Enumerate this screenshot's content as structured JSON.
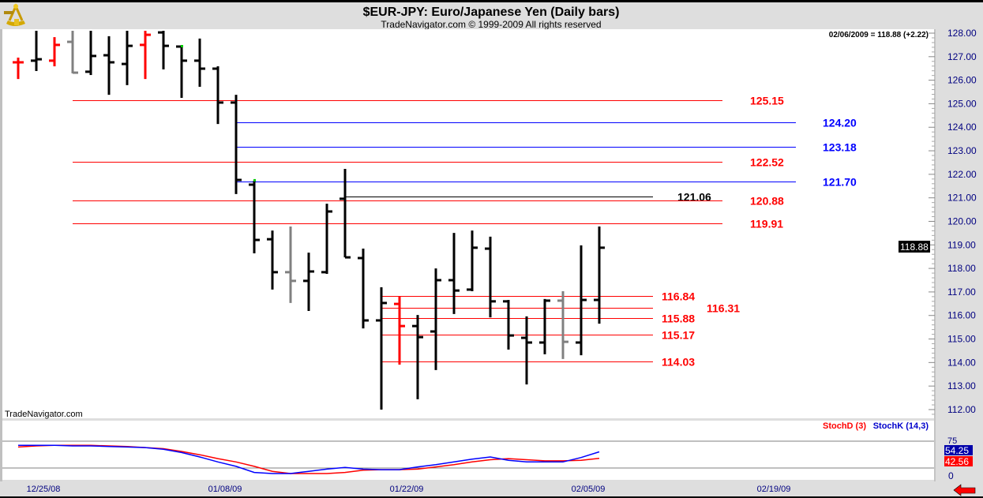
{
  "header": {
    "title": "$EUR-JPY:  Euro/Japanese Yen  (Daily bars)",
    "copyright": "TradeNavigator.com © 1999-2009 All rights reserved",
    "logo_icon": "sextant-icon"
  },
  "price_pane": {
    "last_readout": "02/06/2009 = 118.88 (+2.22)",
    "watermark": "TradeNavigator.com",
    "current_price_tag": "118.88",
    "axis_labels": [
      "128.00",
      "127.00",
      "126.00",
      "125.00",
      "124.00",
      "123.00",
      "122.00",
      "121.00",
      "120.00",
      "119.00",
      "118.00",
      "117.00",
      "116.00",
      "115.00",
      "114.00",
      "113.00",
      "112.00"
    ],
    "colors": {
      "up": "#000000",
      "red": "#ff0000",
      "gray": "#808080",
      "axis_text": "#000080"
    }
  },
  "chart_data": {
    "type": "ohlc",
    "ylim": [
      112,
      128
    ],
    "bars": [
      {
        "o": 126.76,
        "h": 126.96,
        "l": 126.05,
        "c": 126.76,
        "color": "red"
      },
      {
        "o": 126.83,
        "h": 128.1,
        "l": 126.39,
        "c": 126.89,
        "color": "black"
      },
      {
        "o": 126.83,
        "h": 127.83,
        "l": 126.59,
        "c": 127.5,
        "color": "red"
      },
      {
        "o": 127.63,
        "h": 128.1,
        "l": 126.29,
        "c": 126.32,
        "color": "gray"
      },
      {
        "o": 126.36,
        "h": 128.1,
        "l": 126.22,
        "c": 127.03,
        "color": "black"
      },
      {
        "o": 127.06,
        "h": 127.87,
        "l": 125.38,
        "c": 126.76,
        "color": "black"
      },
      {
        "o": 126.69,
        "h": 128.1,
        "l": 125.79,
        "c": 127.46,
        "color": "black"
      },
      {
        "o": 127.5,
        "h": 128.1,
        "l": 126.05,
        "c": 127.93,
        "color": "red"
      },
      {
        "o": 128.03,
        "h": 128.1,
        "l": 126.46,
        "c": 127.46,
        "color": "black"
      },
      {
        "o": 127.43,
        "h": 127.43,
        "l": 125.25,
        "c": 126.83,
        "color": "black"
      },
      {
        "o": 126.83,
        "h": 127.77,
        "l": 125.72,
        "c": 126.49,
        "color": "black"
      },
      {
        "o": 126.49,
        "h": 126.59,
        "l": 124.14,
        "c": 125.05,
        "color": "black"
      },
      {
        "o": 125.05,
        "h": 125.38,
        "l": 121.16,
        "c": 121.76,
        "color": "black"
      },
      {
        "o": 121.56,
        "h": 121.73,
        "l": 118.64,
        "c": 119.21,
        "color": "black"
      },
      {
        "o": 119.24,
        "h": 119.61,
        "l": 117.1,
        "c": 117.84,
        "color": "black"
      },
      {
        "o": 117.84,
        "h": 119.78,
        "l": 116.53,
        "c": 117.47,
        "color": "gray"
      },
      {
        "o": 117.47,
        "h": 118.67,
        "l": 116.19,
        "c": 117.87,
        "color": "black"
      },
      {
        "o": 117.84,
        "h": 120.75,
        "l": 117.77,
        "c": 120.42,
        "color": "black"
      },
      {
        "o": 120.96,
        "h": 122.23,
        "l": 118.47,
        "c": 118.47,
        "color": "black"
      },
      {
        "o": 118.44,
        "h": 118.84,
        "l": 115.45,
        "c": 115.79,
        "color": "black"
      },
      {
        "o": 115.79,
        "h": 117.2,
        "l": 112.0,
        "c": 116.53,
        "color": "black"
      },
      {
        "o": 116.49,
        "h": 116.8,
        "l": 113.91,
        "c": 115.55,
        "color": "red"
      },
      {
        "o": 115.55,
        "h": 116.02,
        "l": 112.44,
        "c": 115.08,
        "color": "black"
      },
      {
        "o": 115.32,
        "h": 118.0,
        "l": 113.68,
        "c": 117.5,
        "color": "black"
      },
      {
        "o": 117.5,
        "h": 119.51,
        "l": 116.06,
        "c": 117.06,
        "color": "black"
      },
      {
        "o": 117.1,
        "h": 119.61,
        "l": 117.03,
        "c": 118.88,
        "color": "black"
      },
      {
        "o": 118.84,
        "h": 119.35,
        "l": 115.92,
        "c": 116.6,
        "color": "black"
      },
      {
        "o": 116.6,
        "h": 116.66,
        "l": 114.55,
        "c": 115.15,
        "color": "black"
      },
      {
        "o": 115.05,
        "h": 115.96,
        "l": 113.07,
        "c": 114.85,
        "color": "black"
      },
      {
        "o": 114.85,
        "h": 116.7,
        "l": 114.35,
        "c": 116.63,
        "color": "black"
      },
      {
        "o": 116.63,
        "h": 117.03,
        "l": 114.15,
        "c": 114.88,
        "color": "gray"
      },
      {
        "o": 114.85,
        "h": 118.98,
        "l": 114.31,
        "c": 116.66,
        "color": "black"
      },
      {
        "o": 116.66,
        "h": 119.78,
        "l": 115.65,
        "c": 118.88,
        "color": "black"
      }
    ],
    "levels": [
      {
        "value": 125.15,
        "label": "125.15",
        "color": "#ff0000"
      },
      {
        "value": 124.2,
        "label": "124.20",
        "color": "#0000ff"
      },
      {
        "value": 123.18,
        "label": "123.18",
        "color": "#0000ff"
      },
      {
        "value": 122.52,
        "label": "122.52",
        "color": "#ff0000"
      },
      {
        "value": 121.7,
        "label": "121.70",
        "color": "#0000ff"
      },
      {
        "value": 121.06,
        "label": "121.06",
        "color": "#000000"
      },
      {
        "value": 120.88,
        "label": "120.88",
        "color": "#ff0000"
      },
      {
        "value": 119.91,
        "label": "119.91",
        "color": "#ff0000"
      },
      {
        "value": 116.84,
        "label": "116.84",
        "color": "#ff0000"
      },
      {
        "value": 116.31,
        "label": "116.31",
        "color": "#ff0000"
      },
      {
        "value": 115.88,
        "label": "115.88",
        "color": "#ff0000"
      },
      {
        "value": 115.17,
        "label": "115.17",
        "color": "#ff0000"
      },
      {
        "value": 114.03,
        "label": "114.03",
        "color": "#ff0000"
      }
    ],
    "x_tick_labels": [
      "12/25/08",
      "01/08/09",
      "01/22/09",
      "02/05/09",
      "02/19/09"
    ],
    "indicator": {
      "legend_d": "StochD (3)",
      "legend_k": "StochK (14,3)",
      "color_d": "#ff0000",
      "color_k": "#0000ff",
      "axis_75": "75",
      "axis_0": "0",
      "k_tag": "54.25",
      "d_tag": "42.56",
      "k": [
        66,
        66,
        66,
        65,
        65,
        64,
        63,
        62,
        59,
        53,
        45,
        36,
        28,
        17,
        15,
        15,
        19,
        23,
        26,
        23,
        22,
        22,
        27,
        31,
        36,
        41,
        45,
        39,
        36,
        36,
        36,
        44,
        54.25
      ],
      "d": [
        63,
        65,
        66,
        66,
        66,
        65,
        64,
        62,
        60,
        55,
        49,
        42,
        36,
        28,
        19,
        15,
        15,
        15,
        17,
        21,
        22,
        22,
        23,
        27,
        31,
        36,
        40,
        42,
        40,
        38,
        38,
        39,
        42.56
      ]
    }
  }
}
